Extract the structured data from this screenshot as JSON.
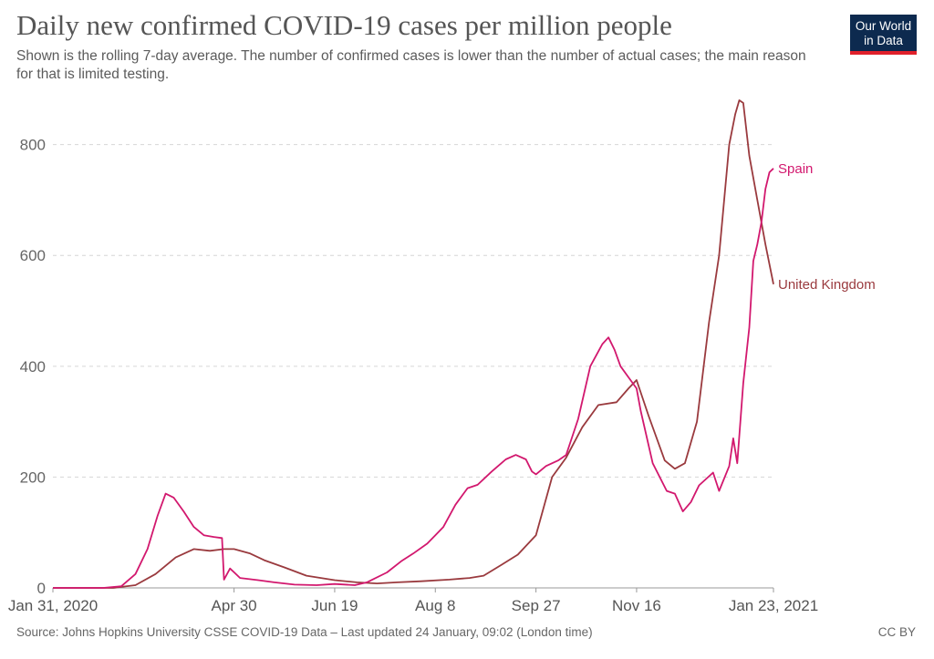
{
  "header": {
    "title": "Daily new confirmed COVID-19 cases per million people",
    "subtitle": "Shown is the rolling 7-day average. The number of confirmed cases is lower than the number of actual cases; the main reason for that is limited testing.",
    "logo_line1": "Our World",
    "logo_line2": "in Data"
  },
  "footer": {
    "source": "Source: Johns Hopkins University CSSE COVID-19 Data – Last updated 24 January, 09:02 (London time)",
    "license": "CC BY"
  },
  "chart_data": {
    "type": "line",
    "title": "Daily new confirmed COVID-19 cases per million people",
    "xlabel": "",
    "ylabel": "",
    "ylim": [
      0,
      880
    ],
    "yticks": [
      0,
      200,
      400,
      600,
      800
    ],
    "xrange": [
      "2020-01-31",
      "2021-01-23"
    ],
    "xtick_labels": [
      "Jan 31, 2020",
      "Apr 30",
      "Jun 19",
      "Aug 8",
      "Sep 27",
      "Nov 16",
      "Jan 23, 2021"
    ],
    "xtick_dates": [
      "2020-01-31",
      "2020-04-30",
      "2020-06-19",
      "2020-08-08",
      "2020-09-27",
      "2020-11-16",
      "2021-01-23"
    ],
    "grid": true,
    "legend": "inline labels at line ends",
    "series": [
      {
        "name": "Spain",
        "color": "#d2186e",
        "points": [
          [
            "2020-01-31",
            0
          ],
          [
            "2020-02-25",
            0
          ],
          [
            "2020-03-05",
            3
          ],
          [
            "2020-03-12",
            25
          ],
          [
            "2020-03-18",
            70
          ],
          [
            "2020-03-23",
            130
          ],
          [
            "2020-03-27",
            170
          ],
          [
            "2020-03-31",
            163
          ],
          [
            "2020-04-05",
            138
          ],
          [
            "2020-04-10",
            110
          ],
          [
            "2020-04-15",
            95
          ],
          [
            "2020-04-20",
            92
          ],
          [
            "2020-04-24",
            90
          ],
          [
            "2020-04-25",
            15
          ],
          [
            "2020-04-28",
            35
          ],
          [
            "2020-05-03",
            18
          ],
          [
            "2020-05-12",
            14
          ],
          [
            "2020-05-20",
            10
          ],
          [
            "2020-05-30",
            6
          ],
          [
            "2020-06-10",
            5
          ],
          [
            "2020-06-19",
            7
          ],
          [
            "2020-06-29",
            5
          ],
          [
            "2020-07-05",
            10
          ],
          [
            "2020-07-15",
            28
          ],
          [
            "2020-07-22",
            48
          ],
          [
            "2020-07-28",
            62
          ],
          [
            "2020-08-04",
            80
          ],
          [
            "2020-08-08",
            95
          ],
          [
            "2020-08-12",
            110
          ],
          [
            "2020-08-18",
            150
          ],
          [
            "2020-08-24",
            180
          ],
          [
            "2020-08-29",
            186
          ],
          [
            "2020-09-05",
            210
          ],
          [
            "2020-09-12",
            232
          ],
          [
            "2020-09-17",
            240
          ],
          [
            "2020-09-22",
            232
          ],
          [
            "2020-09-25",
            210
          ],
          [
            "2020-09-27",
            205
          ],
          [
            "2020-10-02",
            220
          ],
          [
            "2020-10-08",
            230
          ],
          [
            "2020-10-12",
            240
          ],
          [
            "2020-10-18",
            305
          ],
          [
            "2020-10-24",
            400
          ],
          [
            "2020-10-30",
            440
          ],
          [
            "2020-11-02",
            452
          ],
          [
            "2020-11-05",
            430
          ],
          [
            "2020-11-08",
            400
          ],
          [
            "2020-11-12",
            380
          ],
          [
            "2020-11-16",
            360
          ],
          [
            "2020-11-18",
            320
          ],
          [
            "2020-11-24",
            225
          ],
          [
            "2020-12-01",
            175
          ],
          [
            "2020-12-05",
            170
          ],
          [
            "2020-12-09",
            138
          ],
          [
            "2020-12-13",
            155
          ],
          [
            "2020-12-17",
            185
          ],
          [
            "2020-12-24",
            208
          ],
          [
            "2020-12-27",
            175
          ],
          [
            "2021-01-01",
            220
          ],
          [
            "2021-01-03",
            270
          ],
          [
            "2021-01-05",
            225
          ],
          [
            "2021-01-08",
            370
          ],
          [
            "2021-01-11",
            470
          ],
          [
            "2021-01-13",
            590
          ],
          [
            "2021-01-15",
            620
          ],
          [
            "2021-01-17",
            660
          ],
          [
            "2021-01-19",
            720
          ],
          [
            "2021-01-21",
            750
          ],
          [
            "2021-01-23",
            757
          ]
        ]
      },
      {
        "name": "United Kingdom",
        "color": "#9a3a3e",
        "points": [
          [
            "2020-01-31",
            0
          ],
          [
            "2020-03-01",
            0
          ],
          [
            "2020-03-12",
            5
          ],
          [
            "2020-03-22",
            25
          ],
          [
            "2020-04-01",
            55
          ],
          [
            "2020-04-10",
            70
          ],
          [
            "2020-04-18",
            67
          ],
          [
            "2020-04-25",
            70
          ],
          [
            "2020-04-30",
            70
          ],
          [
            "2020-05-08",
            62
          ],
          [
            "2020-05-15",
            50
          ],
          [
            "2020-05-25",
            37
          ],
          [
            "2020-06-05",
            22
          ],
          [
            "2020-06-19",
            14
          ],
          [
            "2020-06-30",
            10
          ],
          [
            "2020-07-10",
            8
          ],
          [
            "2020-07-20",
            10
          ],
          [
            "2020-08-01",
            12
          ],
          [
            "2020-08-15",
            15
          ],
          [
            "2020-08-25",
            18
          ],
          [
            "2020-09-01",
            22
          ],
          [
            "2020-09-10",
            42
          ],
          [
            "2020-09-18",
            60
          ],
          [
            "2020-09-27",
            95
          ],
          [
            "2020-10-05",
            200
          ],
          [
            "2020-10-12",
            235
          ],
          [
            "2020-10-20",
            290
          ],
          [
            "2020-10-28",
            330
          ],
          [
            "2020-11-06",
            335
          ],
          [
            "2020-11-12",
            360
          ],
          [
            "2020-11-16",
            375
          ],
          [
            "2020-11-22",
            310
          ],
          [
            "2020-11-30",
            230
          ],
          [
            "2020-12-05",
            215
          ],
          [
            "2020-12-10",
            225
          ],
          [
            "2020-12-16",
            300
          ],
          [
            "2020-12-22",
            480
          ],
          [
            "2020-12-27",
            600
          ],
          [
            "2021-01-01",
            800
          ],
          [
            "2021-01-04",
            855
          ],
          [
            "2021-01-06",
            880
          ],
          [
            "2021-01-08",
            875
          ],
          [
            "2021-01-11",
            780
          ],
          [
            "2021-01-15",
            700
          ],
          [
            "2021-01-19",
            620
          ],
          [
            "2021-01-23",
            548
          ]
        ]
      }
    ]
  }
}
